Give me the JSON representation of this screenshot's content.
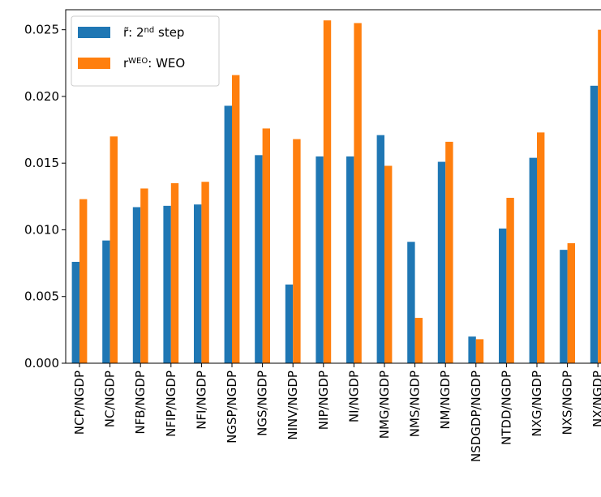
{
  "chart_data": {
    "type": "bar",
    "categories": [
      "NCP/NGDP",
      "NC/NGDP",
      "NFB/NGDP",
      "NFIP/NGDP",
      "NFI/NGDP",
      "NGSP/NGDP",
      "NGS/NGDP",
      "NINV/NGDP",
      "NIP/NGDP",
      "NI/NGDP",
      "NMG/NGDP",
      "NMS/NGDP",
      "NM/NGDP",
      "NSDGDP/NGDP",
      "NTDD/NGDP",
      "NXG/NGDP",
      "NXS/NGDP",
      "NX/NGDP"
    ],
    "series": [
      {
        "name": "r̃: 2nd step",
        "name_base": "r̃: 2",
        "name_sup": "nd",
        "name_tail": " step",
        "color": "#1f77b4",
        "values": [
          0.0076,
          0.0092,
          0.0117,
          0.0118,
          0.0119,
          0.0193,
          0.0156,
          0.0059,
          0.0155,
          0.0155,
          0.0171,
          0.0091,
          0.0151,
          0.002,
          0.0101,
          0.0154,
          0.0085,
          0.0208
        ]
      },
      {
        "name": "rWEO: WEO",
        "name_base": "r",
        "name_sup": "WEO",
        "name_tail": ": WEO",
        "color": "#ff7f0e",
        "values": [
          0.0123,
          0.017,
          0.0131,
          0.0135,
          0.0136,
          0.0216,
          0.0176,
          0.0168,
          0.0257,
          0.0255,
          0.0148,
          0.0034,
          0.0166,
          0.0018,
          0.0124,
          0.0173,
          0.009,
          0.025
        ]
      }
    ],
    "ylim": [
      0,
      0.0265
    ],
    "yticks": [
      "0.000",
      "0.005",
      "0.010",
      "0.015",
      "0.020",
      "0.025"
    ],
    "ytick_values": [
      0,
      0.005,
      0.01,
      0.015,
      0.02,
      0.025
    ],
    "title": "",
    "xlabel": "",
    "ylabel": "",
    "grid": false,
    "legend_position": "upper-left"
  }
}
